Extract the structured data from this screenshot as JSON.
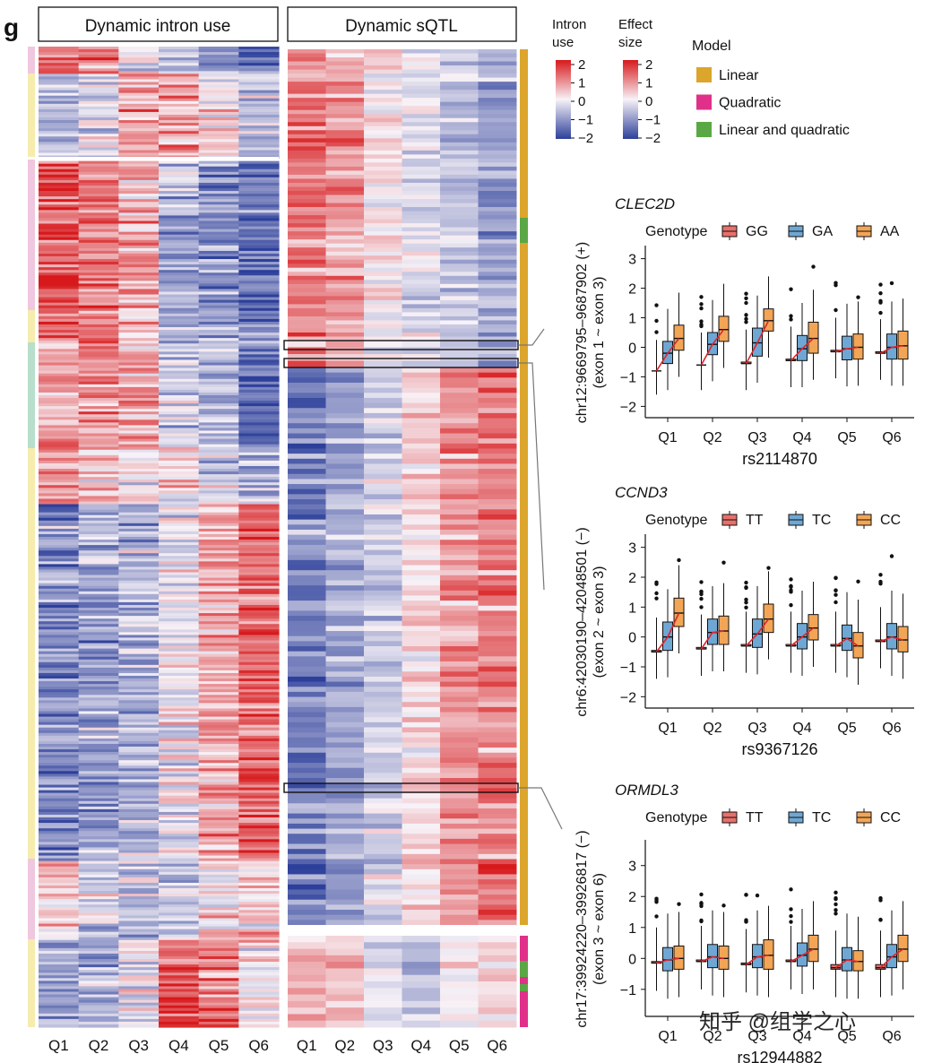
{
  "panel_label": "g",
  "left_heatmap_title": "Dynamic intron use",
  "right_heatmap_title": "Dynamic sQTL",
  "quantiles": [
    "Q1",
    "Q2",
    "Q3",
    "Q4",
    "Q5",
    "Q6"
  ],
  "legend": {
    "intron_use_title": "Intron\nuse",
    "effect_size_title": "Effect\nsize",
    "scale_ticks": [
      "2",
      "1",
      "0",
      "−1",
      "−2"
    ],
    "model_title": "Model",
    "models": [
      {
        "label": "Linear",
        "color": "#dca52b"
      },
      {
        "label": "Quadratic",
        "color": "#e0308a"
      },
      {
        "label": "Linear and quadratic",
        "color": "#5aa845"
      }
    ]
  },
  "colors": {
    "red": "#d7191c",
    "white": "#f7f2f7",
    "blue": "#2c3f9a",
    "genotype": [
      "#e8706a",
      "#6ea7d4",
      "#f3a556"
    ],
    "trend": "#e0242c"
  },
  "boxplots": [
    {
      "gene": "CLEC2D",
      "genotype_label": "Genotype",
      "genotypes": [
        "GG",
        "GA",
        "AA"
      ],
      "ylabel_line1": "chr12:9669795–9687902 (+)",
      "ylabel_line2": "(exon 1 ~ exon 3)",
      "xlabel": "rs2114870",
      "yticks": [
        "−2",
        "−1",
        "0",
        "1",
        "2",
        "3"
      ],
      "ylim": [
        -2.2,
        3.2
      ]
    },
    {
      "gene": "CCND3",
      "genotype_label": "Genotype",
      "genotypes": [
        "TT",
        "TC",
        "CC"
      ],
      "ylabel_line1": "chr6:42030190–42048501 (−)",
      "ylabel_line2": "(exon 2 ~ exon 3)",
      "xlabel": "rs9367126",
      "yticks": [
        "−2",
        "−1",
        "0",
        "1",
        "2",
        "3"
      ],
      "ylim": [
        -2.2,
        3.2
      ]
    },
    {
      "gene": "ORMDL3",
      "genotype_label": "Genotype",
      "genotypes": [
        "TT",
        "TC",
        "CC"
      ],
      "ylabel_line1": "chr17:39924220–39926817 (−)",
      "ylabel_line2": "(exon 3 ~ exon 6)",
      "xlabel": "rs12944882",
      "yticks": [
        "−1",
        "0",
        "1",
        "2",
        "3"
      ],
      "ylim": [
        -1.7,
        3.6
      ]
    }
  ],
  "watermark": "知乎 @组学之心"
}
